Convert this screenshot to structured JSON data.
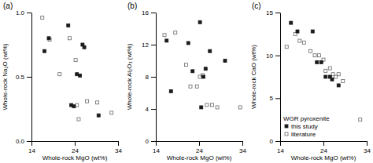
{
  "chart_data": [
    {
      "type": "scatter",
      "title": "(a)",
      "x_label": "Whole-rock MgO (wt%)",
      "y_label": "Whole-rock Na₂O (wt%)",
      "xlim": [
        14,
        34
      ],
      "ylim": [
        0,
        1.0
      ],
      "xticks": [
        14,
        24,
        34
      ],
      "yticks": [
        {
          "value": 0,
          "label": "0.0"
        },
        0.5,
        {
          "value": 1.0,
          "label": "1.0"
        }
      ],
      "grid": false,
      "series": [
        {
          "color": "#1a1a1a",
          "marker": "square",
          "x": [
            17.0,
            18.0,
            22.5,
            23.2,
            23.8,
            24.5,
            25.2,
            25.8,
            26.2,
            29.5
          ],
          "values": [
            0.7,
            0.8,
            0.9,
            0.28,
            0.27,
            0.52,
            0.51,
            0.75,
            0.73,
            0.2
          ]
        },
        {
          "color": "#666666",
          "marker": "open-square",
          "x": [
            16.5,
            18.2,
            20.5,
            22.8,
            24.2,
            24.5,
            24.9,
            26.8,
            29.2,
            32.5
          ],
          "values": [
            0.96,
            0.79,
            0.52,
            0.8,
            0.63,
            0.28,
            0.17,
            0.31,
            0.3,
            0.22
          ]
        }
      ]
    },
    {
      "type": "scatter",
      "title": "(b)",
      "x_label": "Whole-rock MgO (wt%)",
      "y_label": "Whole-rock Al₂O₃ (wt%)",
      "xlim": [
        14,
        34
      ],
      "ylim": [
        0,
        16
      ],
      "xticks": [
        14,
        24,
        34
      ],
      "yticks": [
        0,
        4,
        8,
        12,
        16
      ],
      "grid": false,
      "series": [
        {
          "color": "#1a1a1a",
          "marker": "square",
          "x": [
            16.5,
            17.5,
            21.5,
            22.5,
            24.2,
            24.5,
            25.0,
            25.5,
            26.5,
            30.0
          ],
          "values": [
            12.5,
            6.2,
            12.2,
            8.7,
            14.8,
            4.2,
            8.0,
            9.0,
            11.2,
            10.0
          ]
        },
        {
          "color": "#666666",
          "marker": "open-square",
          "x": [
            16.0,
            18.5,
            21.0,
            22.0,
            23.5,
            24.2,
            24.8,
            25.8,
            27.0,
            28.2,
            33.5
          ],
          "values": [
            13.2,
            13.5,
            9.5,
            6.8,
            6.8,
            8.0,
            8.2,
            4.5,
            4.5,
            4.2,
            4.2
          ]
        }
      ]
    },
    {
      "type": "scatter",
      "title": "(c)",
      "x_label": "Whole-rock MgO (wt%)",
      "y_label": "Whole-rock CaO (wt%)",
      "xlim": [
        14,
        34
      ],
      "ylim": [
        0,
        15
      ],
      "xticks": [
        14,
        24,
        34
      ],
      "yticks": [
        0,
        5,
        10,
        15
      ],
      "grid": false,
      "legend": "lower left",
      "legend_title": "WGR pyroxenite",
      "series": [
        {
          "name": "this study",
          "color": "#1a1a1a",
          "marker": "square",
          "x": [
            16.5,
            18.0,
            21.5,
            22.5,
            23.5,
            24.5,
            25.5,
            26.0,
            27.5
          ],
          "values": [
            13.8,
            12.8,
            12.8,
            9.2,
            9.2,
            7.5,
            7.5,
            7.2,
            6.5
          ]
        },
        {
          "name": "literature",
          "color": "#666666",
          "marker": "open-square",
          "x": [
            15.5,
            17.5,
            18.5,
            19.5,
            21.0,
            22.0,
            23.0,
            24.0,
            24.5,
            25.5,
            26.2,
            26.8,
            27.5,
            28.5,
            32.5
          ],
          "values": [
            11.0,
            12.5,
            11.7,
            11.5,
            10.5,
            10.0,
            10.0,
            9.5,
            8.2,
            8.5,
            7.8,
            7.5,
            7.8,
            7.0,
            2.5
          ]
        }
      ]
    }
  ]
}
